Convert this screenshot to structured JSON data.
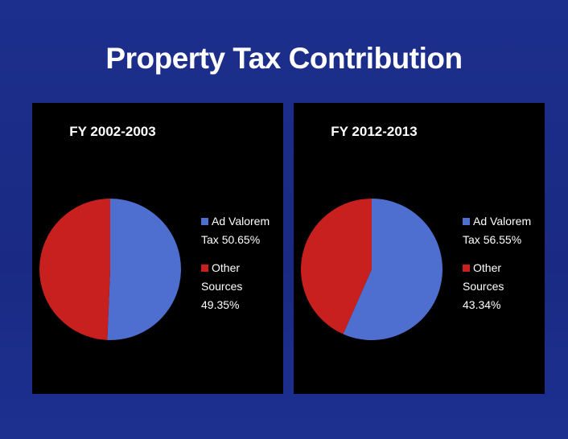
{
  "title": "Property Tax Contribution",
  "chart_data": [
    {
      "type": "pie",
      "title": "FY 2002-2003",
      "categories": [
        "Ad Valorem Tax",
        "Other Sources"
      ],
      "values": [
        50.65,
        49.35
      ],
      "value_labels": [
        "50.65%",
        "49.35%"
      ],
      "colors": [
        "#4f6fd0",
        "#c8201e"
      ],
      "legend": "right"
    },
    {
      "type": "pie",
      "title": "FY 2012-2013",
      "categories": [
        "Ad Valorem Tax",
        "Other Sources"
      ],
      "values": [
        56.55,
        43.34
      ],
      "value_labels": [
        "56.55%",
        "43.34%"
      ],
      "colors": [
        "#4f6fd0",
        "#c8201e"
      ],
      "legend": "right"
    }
  ]
}
